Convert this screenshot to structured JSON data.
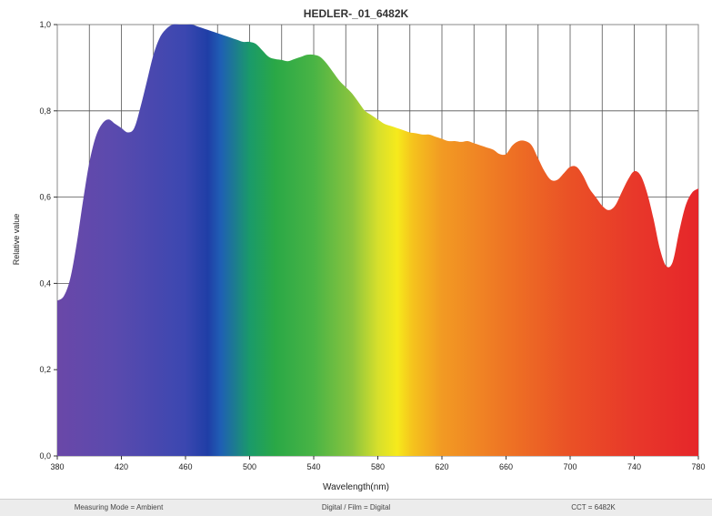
{
  "chart_data": {
    "type": "area",
    "title": "HEDLER-_01_6482K",
    "xlabel": "Wavelength(nm)",
    "ylabel": "Relative value",
    "xlim": [
      380,
      780
    ],
    "ylim": [
      0,
      1.0
    ],
    "x_ticks": [
      380,
      420,
      460,
      500,
      540,
      580,
      620,
      660,
      700,
      740,
      780
    ],
    "x_tick_labels": [
      "380",
      "420",
      "460",
      "500",
      "540",
      "580",
      "620",
      "660",
      "700",
      "740",
      "780"
    ],
    "y_ticks": [
      0,
      0.2,
      0.4,
      0.6,
      0.8,
      1.0
    ],
    "y_tick_labels": [
      "0,0",
      "0,2",
      "0,4",
      "0,6",
      "0,8",
      "1,0"
    ],
    "grid": true,
    "fill": "visible-spectrum gradient",
    "series": [
      {
        "x": [
          380,
          384,
          388,
          392,
          396,
          400,
          404,
          408,
          412,
          416,
          420,
          424,
          428,
          432,
          436,
          440,
          444,
          448,
          452,
          456,
          460,
          464,
          468,
          472,
          476,
          480,
          484,
          488,
          492,
          496,
          500,
          504,
          508,
          512,
          516,
          520,
          524,
          528,
          532,
          536,
          540,
          544,
          548,
          552,
          556,
          560,
          564,
          568,
          572,
          576,
          580,
          584,
          588,
          592,
          596,
          600,
          604,
          608,
          612,
          616,
          620,
          624,
          628,
          632,
          636,
          640,
          644,
          648,
          652,
          656,
          660,
          664,
          668,
          672,
          676,
          680,
          684,
          688,
          692,
          696,
          700,
          704,
          708,
          712,
          716,
          720,
          724,
          728,
          732,
          736,
          740,
          744,
          748,
          752,
          756,
          760,
          764,
          768,
          772,
          776,
          780
        ],
        "values": [
          0.36,
          0.37,
          0.41,
          0.49,
          0.59,
          0.68,
          0.74,
          0.77,
          0.78,
          0.77,
          0.76,
          0.75,
          0.76,
          0.81,
          0.87,
          0.93,
          0.97,
          0.99,
          1.0,
          1.0,
          1.0,
          1.0,
          0.995,
          0.99,
          0.985,
          0.98,
          0.975,
          0.97,
          0.965,
          0.96,
          0.96,
          0.955,
          0.94,
          0.925,
          0.92,
          0.918,
          0.915,
          0.92,
          0.925,
          0.93,
          0.93,
          0.925,
          0.91,
          0.89,
          0.87,
          0.855,
          0.84,
          0.82,
          0.8,
          0.79,
          0.78,
          0.77,
          0.765,
          0.76,
          0.755,
          0.75,
          0.748,
          0.745,
          0.745,
          0.74,
          0.735,
          0.73,
          0.73,
          0.728,
          0.73,
          0.725,
          0.72,
          0.715,
          0.71,
          0.7,
          0.7,
          0.72,
          0.73,
          0.73,
          0.72,
          0.69,
          0.66,
          0.64,
          0.64,
          0.655,
          0.67,
          0.67,
          0.65,
          0.62,
          0.6,
          0.58,
          0.57,
          0.58,
          0.61,
          0.64,
          0.66,
          0.65,
          0.61,
          0.55,
          0.48,
          0.44,
          0.45,
          0.52,
          0.58,
          0.61,
          0.62
        ]
      }
    ]
  },
  "status_bar": {
    "mode": "Measuring Mode = Ambient",
    "digital": "Digital / Film = Digital",
    "cct": "CCT = 6482K"
  }
}
